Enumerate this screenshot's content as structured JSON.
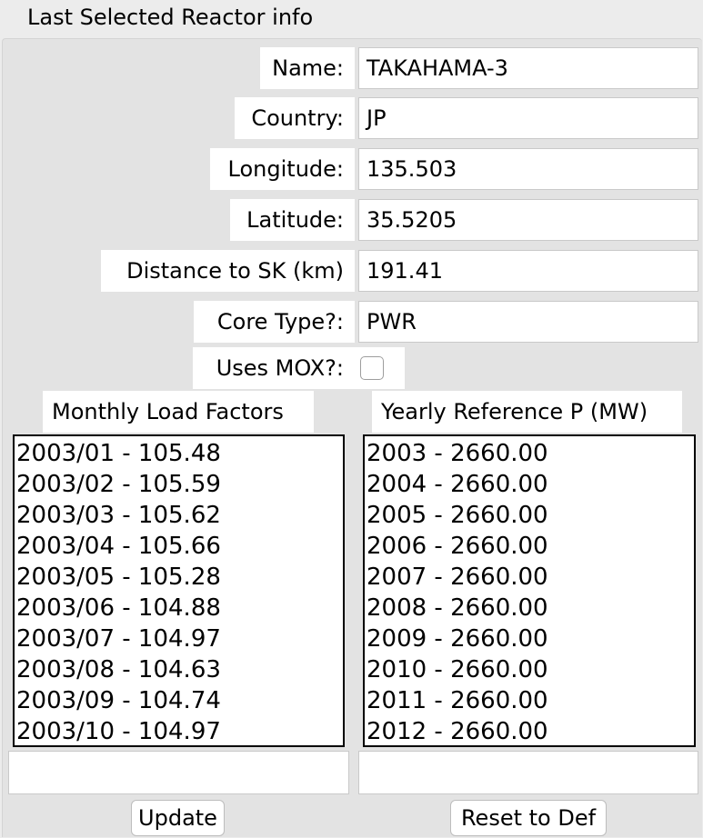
{
  "panel": {
    "title": "Last Selected Reactor info"
  },
  "fields": {
    "name": {
      "label": "Name:",
      "value": "TAKAHAMA-3"
    },
    "country": {
      "label": "Country:",
      "value": "JP"
    },
    "longitude": {
      "label": "Longitude:",
      "value": "135.503"
    },
    "latitude": {
      "label": "Latitude:",
      "value": "35.5205"
    },
    "distance": {
      "label": "Distance to SK (km)",
      "value": "191.41"
    },
    "core_type": {
      "label": "Core Type?:",
      "value": "PWR"
    },
    "uses_mox": {
      "label": "Uses MOX?:",
      "checked": false
    }
  },
  "monthly": {
    "header": "Monthly Load Factors",
    "items": [
      "2003/01 - 105.48",
      "2003/02 - 105.59",
      "2003/03 - 105.62",
      "2003/04 - 105.66",
      "2003/05 - 105.28",
      "2003/06 - 104.88",
      "2003/07 - 104.97",
      "2003/08 - 104.63",
      "2003/09 - 104.74",
      "2003/10 - 104.97"
    ],
    "entry_value": ""
  },
  "yearly": {
    "header": "Yearly Reference P (MW)",
    "items": [
      "2003 - 2660.00",
      "2004 - 2660.00",
      "2005 - 2660.00",
      "2006 - 2660.00",
      "2007 - 2660.00",
      "2008 - 2660.00",
      "2009 - 2660.00",
      "2010 - 2660.00",
      "2011 - 2660.00",
      "2012 - 2660.00"
    ],
    "entry_value": ""
  },
  "buttons": {
    "update": "Update",
    "reset": "Reset to Def"
  }
}
